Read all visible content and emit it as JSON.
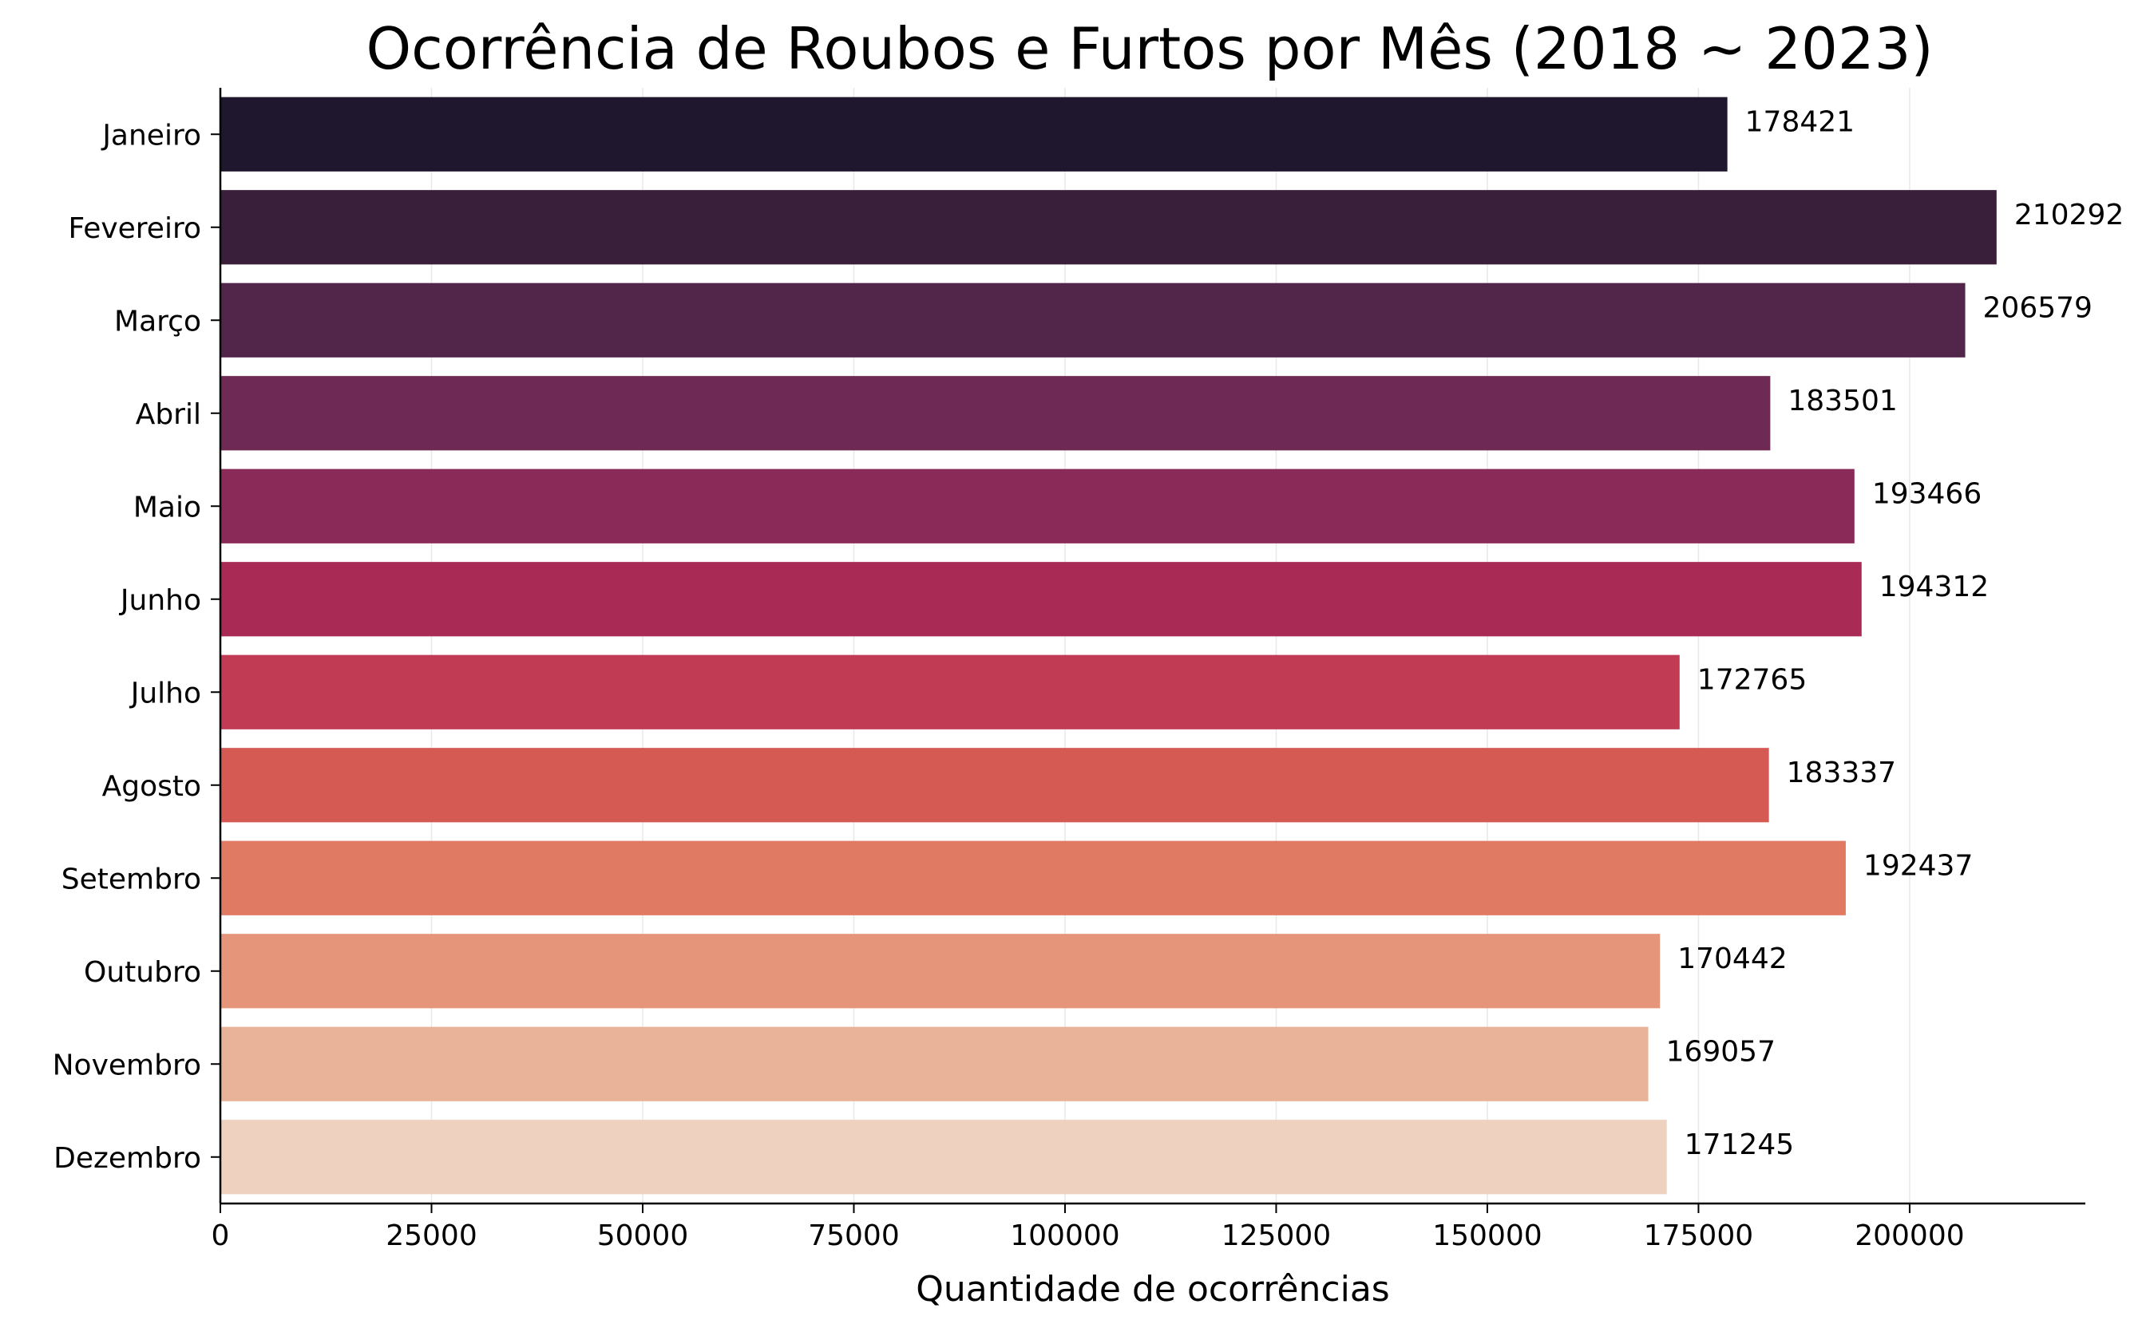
{
  "chart_data": {
    "type": "bar",
    "orientation": "horizontal",
    "title": "Ocorrência de Roubos e Furtos por Mês (2018 ~ 2023)",
    "xlabel": "Quantidade de ocorrências",
    "ylabel": "",
    "categories": [
      "Janeiro",
      "Fevereiro",
      "Março",
      "Abril",
      "Maio",
      "Junho",
      "Julho",
      "Agosto",
      "Setembro",
      "Outubro",
      "Novembro",
      "Dezembro"
    ],
    "values": [
      178421,
      210292,
      206579,
      183501,
      193466,
      194312,
      172765,
      183337,
      192437,
      170442,
      169057,
      171245
    ],
    "data_labels": [
      "178421",
      "210292",
      "206579",
      "183501",
      "193466",
      "194312",
      "172765",
      "183337",
      "192437",
      "170442",
      "169057",
      "171245"
    ],
    "xlim": [
      0,
      220800
    ],
    "xticks": [
      0,
      25000,
      50000,
      75000,
      100000,
      125000,
      150000,
      175000,
      200000
    ],
    "xtick_labels": [
      "0",
      "25000",
      "50000",
      "75000",
      "100000",
      "125000",
      "150000",
      "175000",
      "200000"
    ],
    "grid": "vertical",
    "legend": "none",
    "colors": [
      "#1f172d",
      "#3a1f3b",
      "#52264a",
      "#6e2a54",
      "#8a2a58",
      "#a82a55",
      "#c13b54",
      "#d65a54",
      "#e17a62",
      "#e5967a",
      "#e8b398",
      "#eed2bf"
    ]
  }
}
